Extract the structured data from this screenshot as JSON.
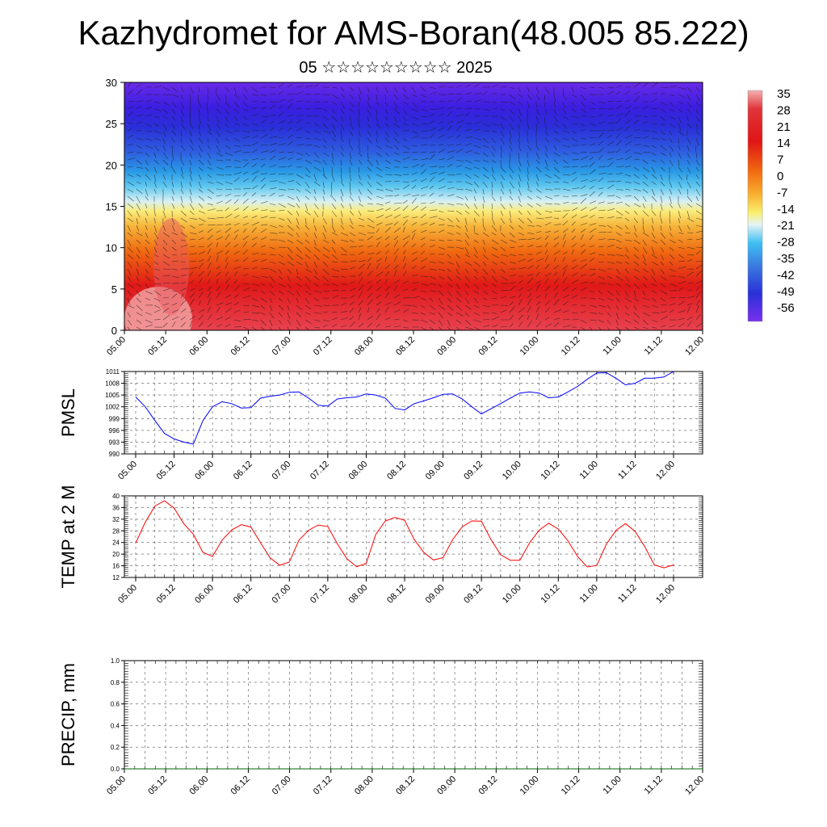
{
  "title": "Kazhydromet for AMS-Boran(48.005 85.222)",
  "subtitle": "05 ☆☆☆☆☆☆☆☆☆ 2025",
  "colors": {
    "pmsl_line": "#0000ff",
    "temp_line": "#ff0000",
    "precip_line": "#006400",
    "grid": "#555555"
  },
  "chart_data": [
    {
      "type": "heatmap",
      "name": "temperature-cross-section",
      "x_tick_labels": [
        "05.00",
        "05.12",
        "06.00",
        "06.12",
        "07.00",
        "07.12",
        "08.00",
        "08.12",
        "09.00",
        "09.12",
        "10.00",
        "10.12",
        "11.00",
        "11.12",
        "12.00"
      ],
      "ylim": [
        0,
        30
      ],
      "y_ticks": [
        0,
        5,
        10,
        15,
        20,
        25,
        30
      ],
      "colorbar_labels": [
        "35",
        "28",
        "21",
        "14",
        "7",
        "0",
        "-7",
        "-14",
        "-21",
        "-28",
        "-35",
        "-42",
        "-49",
        "-56"
      ],
      "colorbar_range": [
        -60,
        38
      ],
      "wind_vectors": true
    },
    {
      "type": "line",
      "name": "pmsl",
      "ylabel": "PMSL",
      "ylim": [
        990,
        1011
      ],
      "y_ticks": [
        990,
        993,
        996,
        999,
        1002,
        1005,
        1008,
        1011
      ],
      "x_tick_labels": [
        "05.00",
        "05.12",
        "06.00",
        "06.12",
        "07.00",
        "07.12",
        "08.00",
        "08.12",
        "09.00",
        "09.12",
        "10.00",
        "10.12",
        "11.00",
        "11.12",
        "12.00"
      ],
      "step_hours": 3,
      "values": [
        1004.5,
        1002.0,
        998.5,
        995.2,
        993.8,
        993.0,
        992.5,
        998.5,
        1002.0,
        1003.3,
        1002.8,
        1001.7,
        1001.8,
        1004.2,
        1004.7,
        1005.0,
        1005.7,
        1005.8,
        1004.2,
        1002.4,
        1002.2,
        1004.0,
        1004.3,
        1004.5,
        1005.3,
        1005.0,
        1004.2,
        1001.6,
        1001.2,
        1002.8,
        1003.5,
        1004.3,
        1005.2,
        1005.3,
        1004.0,
        1002.0,
        1000.2,
        1001.5,
        1002.8,
        1004.2,
        1005.5,
        1005.8,
        1005.5,
        1004.3,
        1004.5,
        1005.8,
        1007.2,
        1009.0,
        1010.6,
        1010.7,
        1009.3,
        1007.6,
        1008.0,
        1009.3,
        1009.3,
        1009.6,
        1011.0
      ]
    },
    {
      "type": "line",
      "name": "temp-2m",
      "ylabel": "TEMP at 2 M",
      "ylim": [
        12,
        40
      ],
      "y_ticks": [
        12,
        16,
        20,
        24,
        28,
        32,
        36,
        40
      ],
      "x_tick_labels": [
        "05.00",
        "05.12",
        "06.00",
        "06.12",
        "07.00",
        "07.12",
        "08.00",
        "08.12",
        "09.00",
        "09.12",
        "10.00",
        "10.12",
        "11.00",
        "11.12",
        "12.00"
      ],
      "step_hours": 3,
      "values": [
        23.8,
        31.0,
        36.5,
        38.3,
        35.8,
        30.5,
        26.8,
        20.6,
        19.2,
        24.8,
        28.3,
        30.1,
        29.3,
        23.9,
        18.7,
        16.2,
        17.3,
        24.8,
        28.2,
        30.0,
        29.5,
        23.5,
        18.4,
        15.7,
        16.8,
        26.8,
        31.4,
        32.6,
        31.6,
        25.0,
        20.6,
        18.0,
        18.8,
        25.0,
        29.4,
        31.4,
        31.3,
        25.0,
        19.8,
        17.9,
        17.9,
        23.8,
        28.2,
        30.6,
        28.6,
        24.6,
        19.2,
        15.6,
        16.1,
        23.4,
        28.1,
        30.5,
        27.8,
        22.6,
        16.3,
        15.3,
        16.3
      ]
    },
    {
      "type": "line",
      "name": "precip",
      "ylabel": "PRECIP, mm",
      "ylim": [
        0,
        1
      ],
      "y_ticks": [
        "0.0",
        "0.2",
        "0.4",
        "0.6",
        "0.8",
        "1.0"
      ],
      "x_tick_labels": [
        "05.00",
        "05.12",
        "06.00",
        "06.12",
        "07.00",
        "07.12",
        "08.00",
        "08.12",
        "09.00",
        "09.12",
        "10.00",
        "10.12",
        "11.00",
        "11.12",
        "12.00"
      ],
      "step_hours": 3,
      "values": [
        0,
        0,
        0,
        0,
        0,
        0,
        0,
        0,
        0,
        0,
        0,
        0,
        0,
        0,
        0,
        0,
        0,
        0,
        0,
        0,
        0,
        0,
        0,
        0,
        0,
        0,
        0,
        0,
        0,
        0,
        0,
        0,
        0,
        0,
        0,
        0,
        0,
        0,
        0,
        0,
        0,
        0,
        0,
        0,
        0,
        0,
        0,
        0,
        0,
        0,
        0,
        0,
        0,
        0,
        0,
        0,
        0
      ]
    }
  ]
}
